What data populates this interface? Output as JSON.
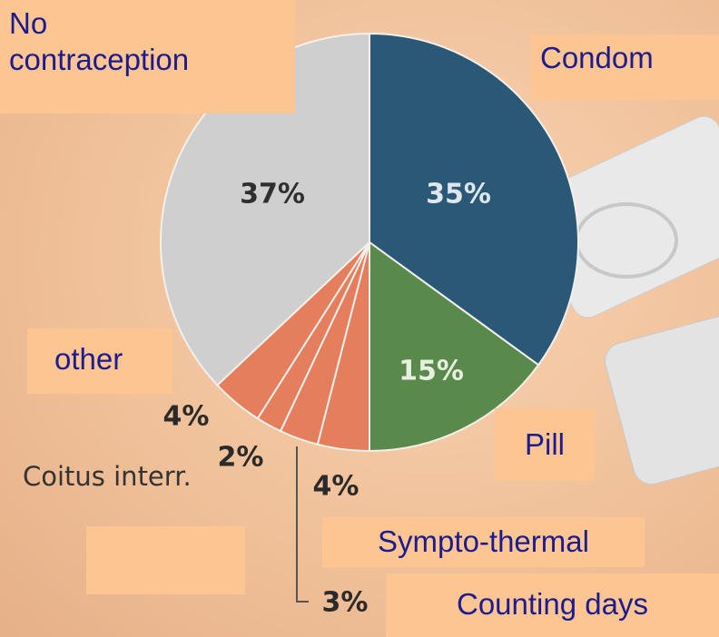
{
  "chart_data": {
    "type": "pie",
    "categories": [
      "Condom",
      "Pill",
      "Sympto-thermal",
      "Counting days",
      "Coitus interr.",
      "other",
      "No contraception"
    ],
    "values": [
      35,
      15,
      4,
      3,
      2,
      4,
      37
    ],
    "value_labels": [
      "35%",
      "15%",
      "4%",
      "3%",
      "2%",
      "4%",
      "37%"
    ],
    "colors": [
      "#2b5877",
      "#5a8a4b",
      "#e47e5c",
      "#e47e5c",
      "#e47e5c",
      "#e47e5c",
      "#cfcfcf"
    ]
  }
}
